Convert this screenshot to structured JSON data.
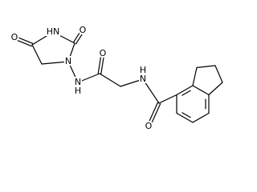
{
  "atoms": [
    {
      "label": "O"
    },
    {
      "label": "HN"
    },
    {
      "label": "O"
    },
    {
      "label": "N"
    },
    {
      "label": "N"
    },
    {
      "label": "H"
    },
    {
      "label": "O"
    },
    {
      "label": "N"
    },
    {
      "label": "H"
    },
    {
      "label": "O"
    }
  ]
}
